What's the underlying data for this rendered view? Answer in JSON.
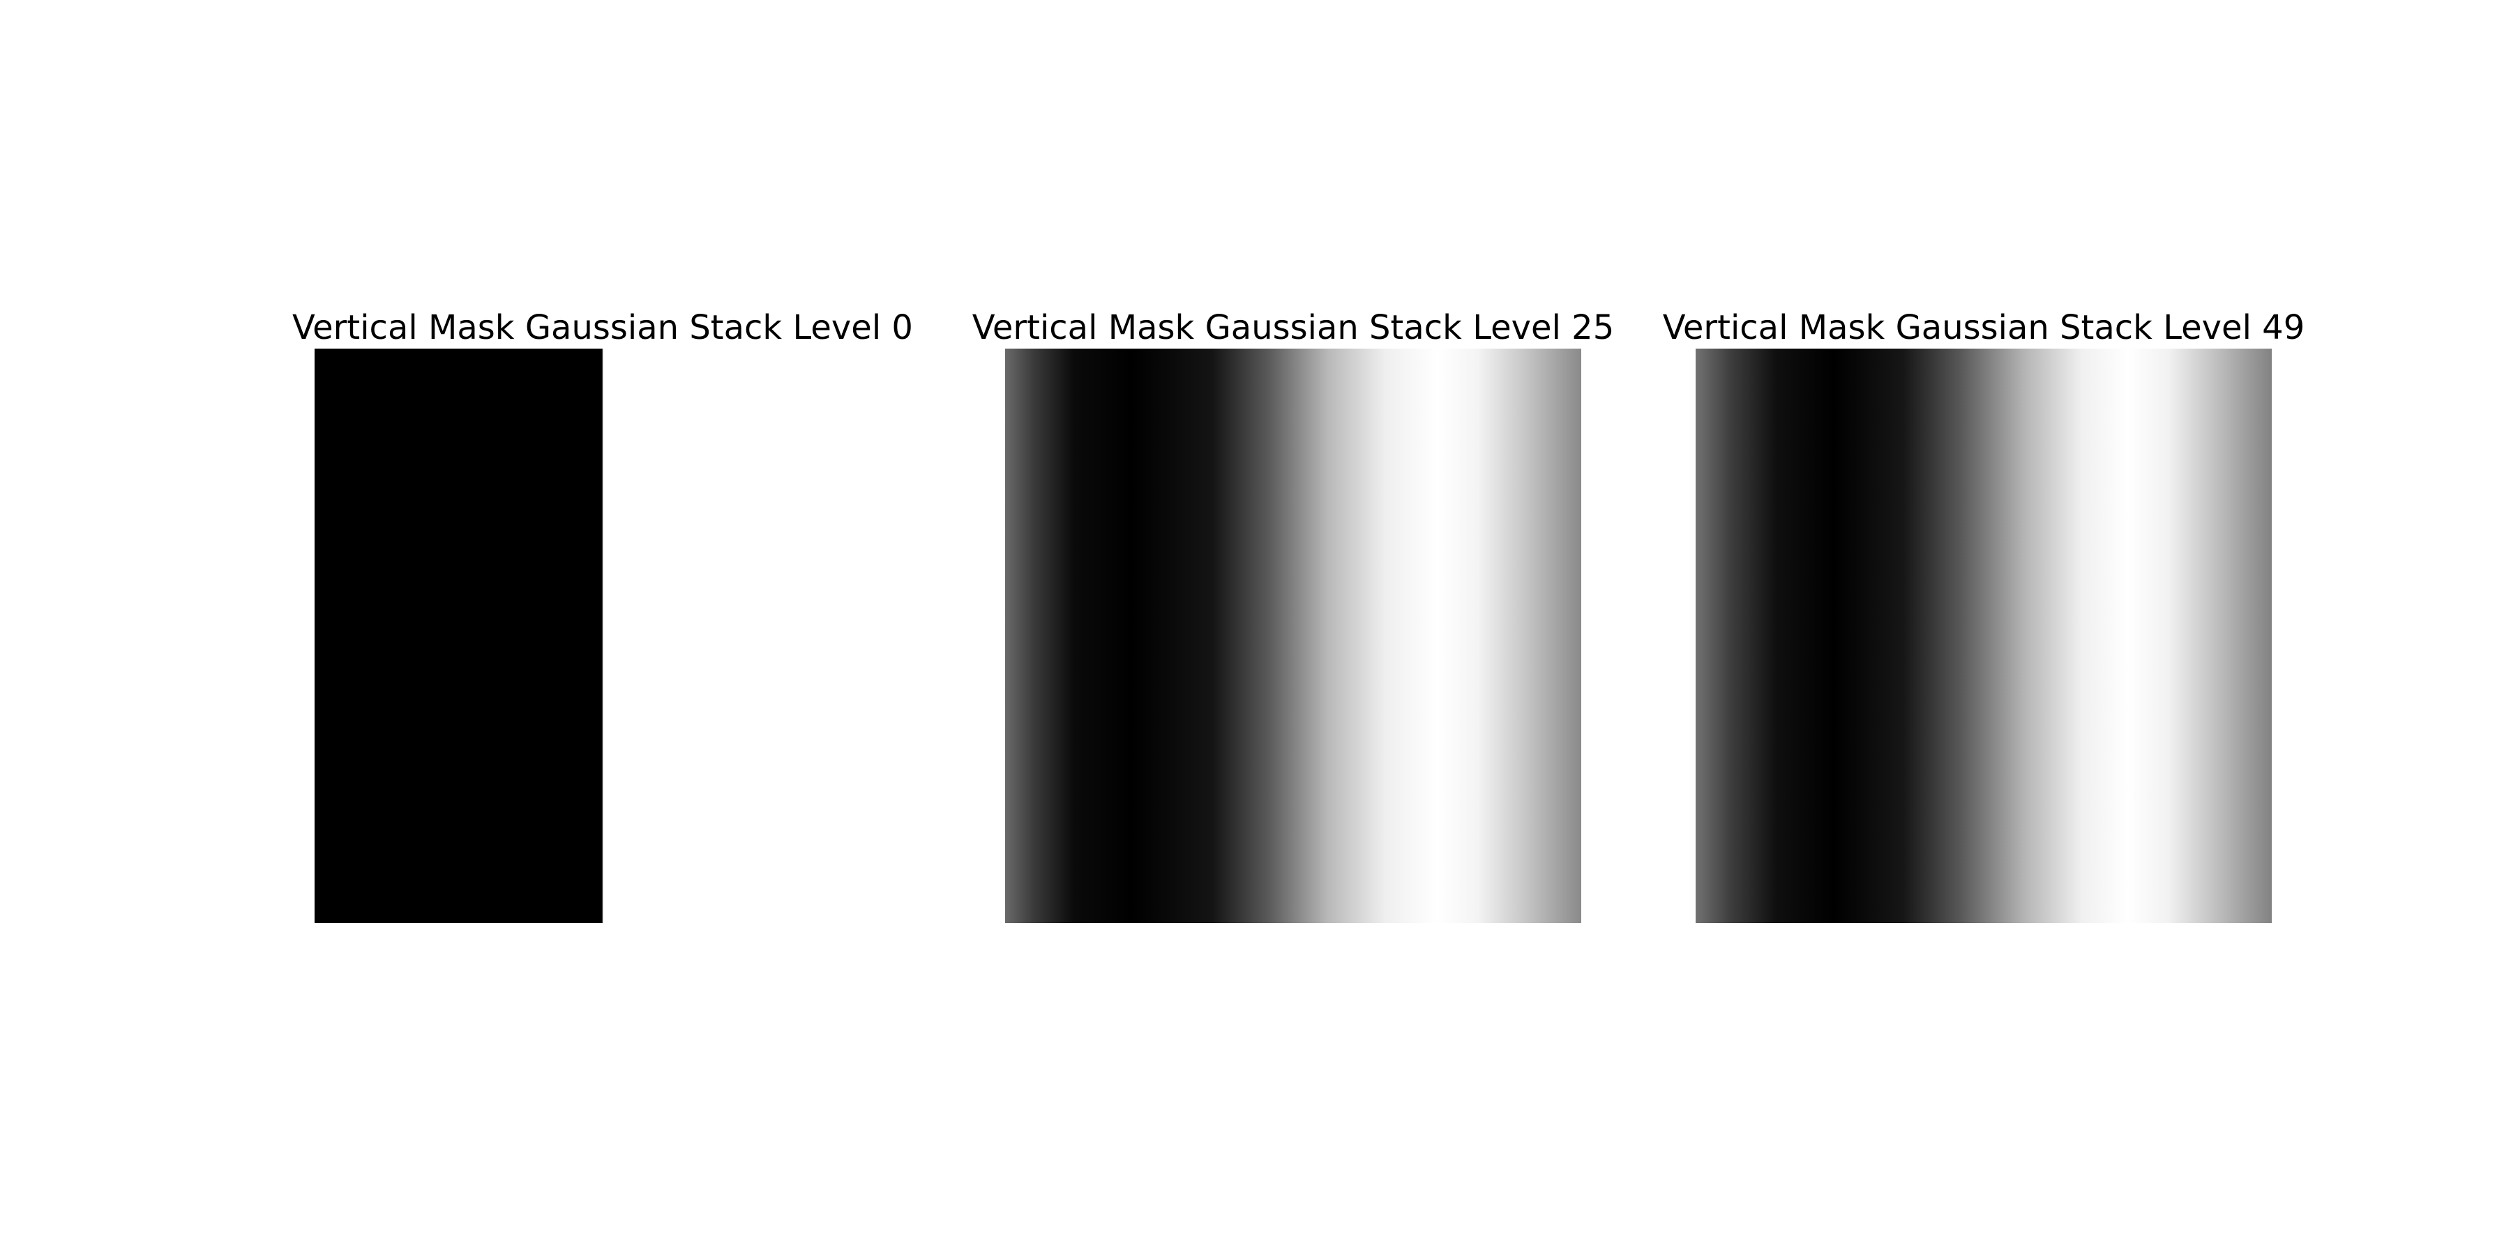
{
  "panels": [
    {
      "title": "Vertical Mask Gaussian Stack Level 0",
      "description": "Hard-edged vertical mask: left half black, right half white",
      "level": 0
    },
    {
      "title": "Vertical Mask Gaussian Stack Level 25",
      "description": "Blurred vertical mask with smooth black-to-white horizontal transitions",
      "level": 25
    },
    {
      "title": "Vertical Mask Gaussian Stack Level 49",
      "description": "Heavily blurred vertical mask with wide black-to-white horizontal transitions",
      "level": 49
    }
  ]
}
